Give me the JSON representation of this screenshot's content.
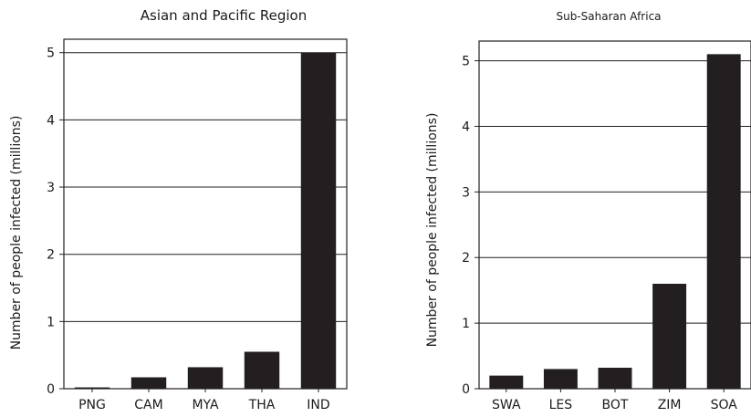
{
  "chart_data": [
    {
      "type": "bar",
      "title": "Asian and Pacific Region",
      "xlabel": "",
      "ylabel": "Number of people infected (millions)",
      "categories": [
        "PNG",
        "CAM",
        "MYA",
        "THA",
        "IND"
      ],
      "values": [
        0.02,
        0.17,
        0.32,
        0.55,
        5.0
      ],
      "ylim": [
        0,
        5.2
      ],
      "yticks": [
        0,
        1,
        2,
        3,
        4,
        5
      ],
      "grid": true,
      "bar_color": "#231f20"
    },
    {
      "type": "bar",
      "title": "Sub-Saharan Africa",
      "xlabel": "",
      "ylabel": "Number of people infected (millions)",
      "categories": [
        "SWA",
        "LES",
        "BOT",
        "ZIM",
        "SOA"
      ],
      "values": [
        0.2,
        0.3,
        0.32,
        1.6,
        5.1
      ],
      "ylim": [
        0,
        5.3
      ],
      "yticks": [
        0,
        1,
        2,
        3,
        4,
        5
      ],
      "grid": true,
      "bar_color": "#231f20"
    }
  ]
}
